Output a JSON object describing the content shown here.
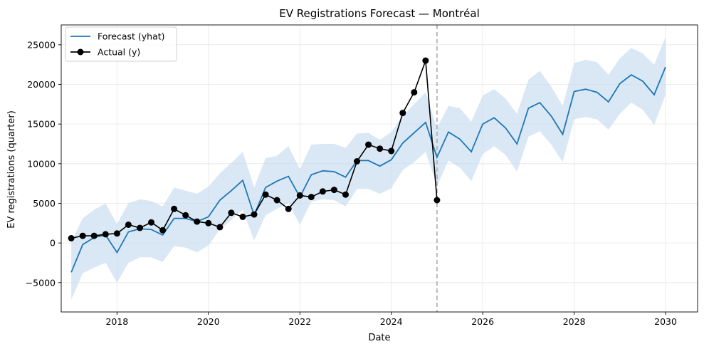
{
  "chart_data": {
    "type": "line",
    "title": "EV Registrations Forecast — Montréal",
    "xlabel": "Date",
    "ylabel": "EV registrations (quarter)",
    "xlim": [
      2016.78,
      2030.7
    ],
    "ylim": [
      -8700,
      27500
    ],
    "x_ticks": [
      2018,
      2020,
      2022,
      2024,
      2026,
      2028,
      2030
    ],
    "x_tick_labels": [
      "2018",
      "2020",
      "2022",
      "2024",
      "2026",
      "2028",
      "2030"
    ],
    "y_ticks": [
      -5000,
      0,
      5000,
      10000,
      15000,
      20000,
      25000
    ],
    "y_tick_labels": [
      "−5000",
      "0",
      "5000",
      "10000",
      "15000",
      "20000",
      "25000"
    ],
    "grid": true,
    "legend_position": "top-left",
    "cutoff_x": 2025.0,
    "colors": {
      "forecast": "#1f77b4",
      "band": "#c6dcef",
      "actual": "#000000",
      "cutoff": "#aaaaaa"
    },
    "series": [
      {
        "name": "Forecast (yhat)",
        "kind": "line",
        "x": [
          2017.0,
          2017.25,
          2017.5,
          2017.75,
          2018.0,
          2018.25,
          2018.5,
          2018.75,
          2019.0,
          2019.25,
          2019.5,
          2019.75,
          2020.0,
          2020.25,
          2020.5,
          2020.75,
          2021.0,
          2021.25,
          2021.5,
          2021.75,
          2022.0,
          2022.25,
          2022.5,
          2022.75,
          2023.0,
          2023.25,
          2023.5,
          2023.75,
          2024.0,
          2024.25,
          2024.5,
          2024.75,
          2025.0,
          2025.25,
          2025.5,
          2025.75,
          2026.0,
          2026.25,
          2026.5,
          2026.75,
          2027.0,
          2027.25,
          2027.5,
          2027.75,
          2028.0,
          2028.25,
          2028.5,
          2028.75,
          2029.0,
          2029.25,
          2029.5,
          2029.75,
          2030.0
        ],
        "y": [
          -3700,
          -200,
          700,
          1000,
          -1200,
          1400,
          1800,
          1700,
          1000,
          3100,
          3100,
          2700,
          3300,
          5400,
          6600,
          7900,
          3500,
          7000,
          7800,
          8400,
          5800,
          8600,
          9100,
          9000,
          8300,
          10400,
          10400,
          9700,
          10500,
          12600,
          13900,
          15200,
          10800,
          14000,
          13100,
          11500,
          15000,
          15800,
          14500,
          12500,
          17000,
          17700,
          16000,
          13700,
          19100,
          19400,
          19000,
          17800,
          20100,
          21200,
          20400,
          18700,
          22200
        ]
      },
      {
        "name": "Actual (y)",
        "kind": "line-marker",
        "x": [
          2017.0,
          2017.25,
          2017.5,
          2017.75,
          2018.0,
          2018.25,
          2018.5,
          2018.75,
          2019.0,
          2019.25,
          2019.5,
          2019.75,
          2020.0,
          2020.25,
          2020.5,
          2020.75,
          2021.0,
          2021.25,
          2021.5,
          2021.75,
          2022.0,
          2022.25,
          2022.5,
          2022.75,
          2023.0,
          2023.25,
          2023.5,
          2023.75,
          2024.0,
          2024.25,
          2024.5,
          2024.75,
          2025.0
        ],
        "y": [
          600,
          900,
          900,
          1100,
          1200,
          2300,
          1900,
          2600,
          1600,
          4300,
          3500,
          2700,
          2500,
          2000,
          3800,
          3300,
          3600,
          6100,
          5400,
          4300,
          6000,
          5800,
          6500,
          6700,
          6100,
          10300,
          12400,
          11900,
          11600,
          16400,
          19000,
          23000,
          5400
        ]
      }
    ],
    "band_lower": [
      -7200,
      -3800,
      -3100,
      -2500,
      -5000,
      -2500,
      -1800,
      -1800,
      -2400,
      -400,
      -600,
      -1200,
      -300,
      1700,
      2900,
      4200,
      300,
      3500,
      4300,
      5000,
      2300,
      5200,
      5500,
      5400,
      4600,
      6800,
      6800,
      6200,
      6900,
      9200,
      10200,
      11500,
      7200,
      10400,
      9500,
      7800,
      11200,
      12200,
      11100,
      9000,
      13400,
      14100,
      12400,
      10200,
      15600,
      15900,
      15600,
      14300,
      16300,
      17700,
      16800,
      14900,
      18700
    ],
    "band_upper": [
      100,
      3100,
      4200,
      5000,
      2400,
      5000,
      5500,
      5300,
      4600,
      7000,
      6600,
      6200,
      7100,
      8800,
      10100,
      11500,
      7000,
      10700,
      11000,
      12200,
      9300,
      12400,
      12500,
      12500,
      12000,
      13800,
      13900,
      13000,
      14000,
      16000,
      17500,
      19000,
      14500,
      17300,
      17000,
      15300,
      18600,
      19400,
      18200,
      16300,
      20600,
      21700,
      19700,
      17300,
      22700,
      23100,
      22800,
      21200,
      23300,
      24600,
      23900,
      22500,
      26000
    ]
  }
}
